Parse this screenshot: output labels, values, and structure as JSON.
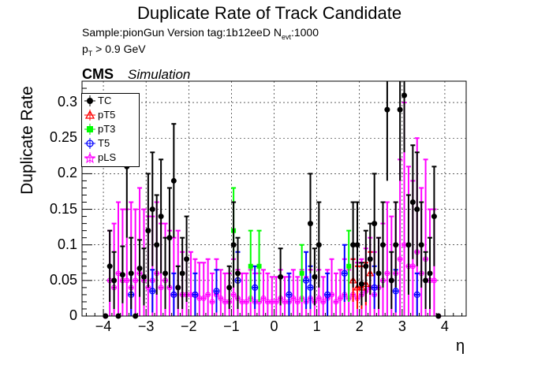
{
  "title": "Duplicate Rate of Track Candidate",
  "sample_line": "Sample:pionGun   Version tag:1b12eeD  N",
  "sample_sub": "evt",
  "sample_tail": ":1000",
  "pt_main": "p",
  "pt_sub": "T",
  "pt_tail": " > 0.9 GeV",
  "cms": "CMS",
  "simulation": "Simulation",
  "colors": {
    "TC": "#000000",
    "pT5": "#ff0000",
    "pT3": "#00ff00",
    "T5": "#0000ff",
    "pLS": "#ff00ff"
  },
  "chart_data": {
    "type": "scatter",
    "title": "Duplicate Rate of Track Candidate",
    "xlabel": "η",
    "ylabel": "Duplicate Rate",
    "xlim": [
      -4.5,
      4.5
    ],
    "ylim": [
      0,
      0.33
    ],
    "grid": true,
    "legend_position": "top-left",
    "x_ticks": [
      "−4",
      "−3",
      "−2",
      "−1",
      "0",
      "1",
      "2",
      "3",
      "4"
    ],
    "y_ticks": [
      "0",
      "0.05",
      "0.1",
      "0.15",
      "0.2",
      "0.25",
      "0.3"
    ],
    "series": [
      {
        "name": "TC",
        "x": [
          -3.95,
          -3.85,
          -3.75,
          -3.65,
          -3.55,
          -3.45,
          -3.35,
          -3.25,
          -3.15,
          -3.05,
          -2.95,
          -2.85,
          -2.75,
          -2.65,
          -2.55,
          -2.45,
          -2.35,
          -2.25,
          -2.15,
          -2.05,
          -1.05,
          -0.95,
          -0.85,
          0.15,
          0.85,
          0.95,
          1.05,
          1.85,
          1.95,
          2.05,
          2.15,
          2.25,
          2.35,
          2.45,
          2.55,
          2.65,
          2.75,
          2.85,
          2.95,
          3.05,
          3.15,
          3.25,
          3.35,
          3.45,
          3.55,
          3.65,
          3.75,
          3.85
        ],
        "y": [
          0.0,
          0.07,
          0.05,
          0.0,
          0.058,
          0.21,
          0.06,
          0.0,
          0.067,
          0.055,
          0.12,
          0.15,
          0.1,
          0.14,
          0.06,
          0.11,
          0.19,
          0.04,
          0.06,
          0.08,
          0.04,
          0.1,
          0.06,
          0.055,
          0.13,
          0.055,
          0.1,
          0.1,
          0.1,
          0.045,
          0.07,
          0.08,
          0.13,
          0.06,
          0.1,
          0.29,
          0.05,
          0.1,
          0.29,
          0.31,
          0.1,
          0.16,
          0.15,
          0.1,
          0.05,
          0.06,
          0.14,
          0.0
        ],
        "err": [
          0,
          0.05,
          0.04,
          0,
          0.04,
          0.1,
          0.05,
          0,
          0.04,
          0.04,
          0.08,
          0.08,
          0.07,
          0.08,
          0.05,
          0.07,
          0.08,
          0.03,
          0.05,
          0.06,
          0.03,
          0.06,
          0.05,
          0.04,
          0.07,
          0.04,
          0.06,
          0.06,
          0.06,
          0.03,
          0.05,
          0.05,
          0.07,
          0.05,
          0.06,
          0.1,
          0.04,
          0.06,
          0.1,
          0.08,
          0.07,
          0.08,
          0.08,
          0.06,
          0.04,
          0.05,
          0.07,
          0
        ]
      },
      {
        "name": "pT5",
        "x": [
          1.85,
          1.95,
          2.05,
          2.15,
          2.25
        ],
        "y": [
          0.05,
          0.04,
          0.04,
          0.045,
          0.06
        ],
        "err": [
          0.03,
          0.03,
          0.03,
          0.03,
          0.03
        ]
      },
      {
        "name": "pT3",
        "x": [
          -0.95,
          -0.55,
          -0.35,
          0.65,
          1.75
        ],
        "y": [
          0.12,
          0.07,
          0.07,
          0.06,
          0.07
        ],
        "err": [
          0.06,
          0.05,
          0.05,
          0.04,
          0.05
        ]
      },
      {
        "name": "T5",
        "x": [
          -3.35,
          -2.85,
          -2.35,
          -1.85,
          -1.35,
          -0.85,
          -0.45,
          0.35,
          0.75,
          0.85,
          1.25,
          1.65,
          2.35,
          2.85,
          3.35
        ],
        "y": [
          0.03,
          0.035,
          0.03,
          0.03,
          0.035,
          0.05,
          0.04,
          0.03,
          0.05,
          0.04,
          0.03,
          0.06,
          0.04,
          0.035,
          0.03
        ],
        "err": [
          0.03,
          0.03,
          0.03,
          0.03,
          0.03,
          0.04,
          0.03,
          0.03,
          0.04,
          0.03,
          0.03,
          0.04,
          0.03,
          0.03,
          0.03
        ]
      },
      {
        "name": "pLS",
        "x": [
          -3.95,
          -3.85,
          -3.75,
          -3.65,
          -3.55,
          -3.45,
          -3.35,
          -3.25,
          -3.15,
          -3.05,
          -2.95,
          -2.85,
          -2.75,
          -2.65,
          -2.55,
          -2.45,
          -2.35,
          -2.25,
          -2.15,
          -2.05,
          -1.95,
          -1.85,
          -1.75,
          -1.65,
          -1.55,
          -1.45,
          -1.35,
          -1.25,
          -1.15,
          -1.05,
          -0.95,
          -0.85,
          -0.75,
          -0.65,
          -0.55,
          -0.45,
          -0.35,
          -0.25,
          -0.15,
          -0.05,
          0.05,
          0.15,
          0.25,
          0.35,
          0.45,
          0.55,
          0.65,
          0.75,
          0.85,
          0.95,
          1.05,
          1.15,
          1.25,
          1.35,
          1.45,
          1.55,
          1.65,
          1.75,
          1.85,
          1.95,
          2.05,
          2.15,
          2.25,
          2.35,
          2.45,
          2.55,
          2.65,
          2.75,
          2.85,
          2.95,
          3.05,
          3.15,
          3.25,
          3.35,
          3.45,
          3.55,
          3.65,
          3.75,
          3.85
        ],
        "y": [
          0.0,
          0.05,
          0.04,
          0.06,
          0.05,
          0.05,
          0.04,
          0.05,
          0.06,
          0.05,
          0.04,
          0.05,
          0.06,
          0.04,
          0.05,
          0.04,
          0.03,
          0.04,
          0.03,
          0.03,
          0.03,
          0.03,
          0.025,
          0.025,
          0.03,
          0.02,
          0.03,
          0.025,
          0.02,
          0.02,
          0.03,
          0.025,
          0.02,
          0.02,
          0.025,
          0.02,
          0.02,
          0.025,
          0.02,
          0.02,
          0.02,
          0.025,
          0.02,
          0.02,
          0.025,
          0.02,
          0.025,
          0.02,
          0.025,
          0.02,
          0.025,
          0.02,
          0.025,
          0.03,
          0.02,
          0.025,
          0.03,
          0.025,
          0.03,
          0.025,
          0.03,
          0.035,
          0.04,
          0.03,
          0.04,
          0.05,
          0.06,
          0.05,
          0.06,
          0.08,
          0.1,
          0.07,
          0.07,
          0.09,
          0.06,
          0.08,
          0.05,
          0.05,
          0.0
        ],
        "err": [
          0,
          0.07,
          0.09,
          0.1,
          0.1,
          0.1,
          0.12,
          0.1,
          0.12,
          0.1,
          0.1,
          0.09,
          0.1,
          0.09,
          0.08,
          0.08,
          0.08,
          0.08,
          0.06,
          0.05,
          0.06,
          0.05,
          0.05,
          0.05,
          0.05,
          0.04,
          0.05,
          0.04,
          0.04,
          0.04,
          0.05,
          0.04,
          0.04,
          0.04,
          0.04,
          0.04,
          0.04,
          0.04,
          0.04,
          0.035,
          0.035,
          0.04,
          0.035,
          0.035,
          0.04,
          0.035,
          0.04,
          0.035,
          0.04,
          0.035,
          0.04,
          0.035,
          0.04,
          0.05,
          0.04,
          0.04,
          0.05,
          0.04,
          0.05,
          0.05,
          0.05,
          0.06,
          0.07,
          0.06,
          0.07,
          0.08,
          0.1,
          0.09,
          0.1,
          0.14,
          0.2,
          0.14,
          0.12,
          0.16,
          0.12,
          0.14,
          0.1,
          0.1,
          0
        ]
      }
    ]
  }
}
